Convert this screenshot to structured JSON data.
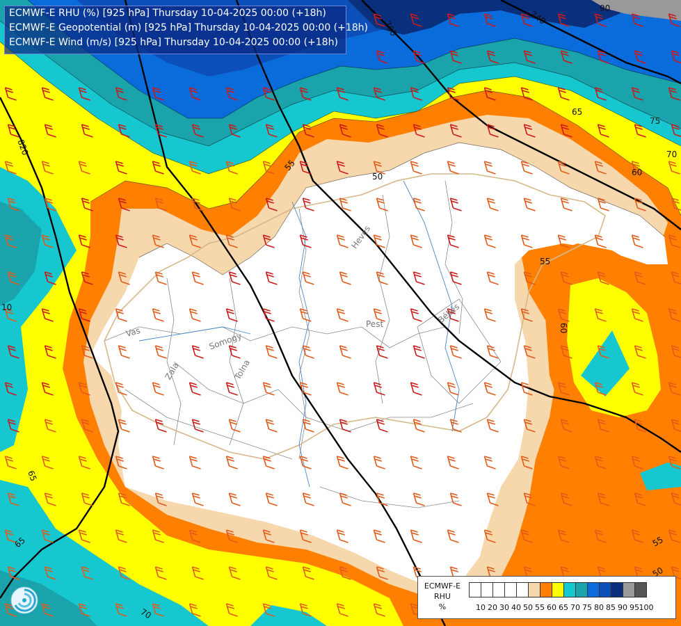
{
  "header": {
    "line1": "ECMWF-E RHU (%) [925 hPa] Thursday 10-04-2025 00:00 (+18h)",
    "line2": "ECMWF-E Geopotential (m) [925 hPa] Thursday 10-04-2025 00:00 (+18h)",
    "line3": "ECMWF-E Wind (m/s) [925 hPa] Thursday 10-04-2025 00:00 (+18h)"
  },
  "legend": {
    "title_line1": "ECMWF-E",
    "title_line2": "RHU",
    "title_line3": "%",
    "colors": [
      "#ffffff",
      "#ffffff",
      "#ffffff",
      "#ffffff",
      "#ffffff",
      "#f7d7ac",
      "#ff8000",
      "#ffff00",
      "#17c7cf",
      "#1aa3ab",
      "#0a6cdb",
      "#0c4fb8",
      "#0a2f7d",
      "#999999",
      "#555555"
    ],
    "ticks": [
      "10",
      "20",
      "30",
      "40",
      "50",
      "55",
      "60",
      "65",
      "70",
      "75",
      "80",
      "85",
      "90",
      "95",
      "100"
    ]
  },
  "contour_labels": {
    "geo_820": "820",
    "geo_760": "760",
    "geo_740": "740",
    "rh_50": "50",
    "rh_55_top": "55",
    "rh_55_right": "55",
    "rh_60_right": "60",
    "rh_60_east": "60",
    "rh_65_top": "65",
    "rh_75": "75",
    "rh_70_ne": "70",
    "rh_90": "90",
    "rh_65_sw": "65",
    "rh_70_bottom": "70",
    "rh_55_se": "55",
    "rh_50_se": "50",
    "rh_10": "10",
    "rh_65_w": "65"
  },
  "place_labels": {
    "vas": "Vas",
    "zala": "Zala",
    "somogy": "Somogy",
    "tolna": "Tolna",
    "pest": "Pest",
    "heves": "Heves",
    "bekes": "Békés"
  },
  "icons": {
    "logo": "swirl-logo-icon",
    "wind": "wind-barb-icon"
  }
}
